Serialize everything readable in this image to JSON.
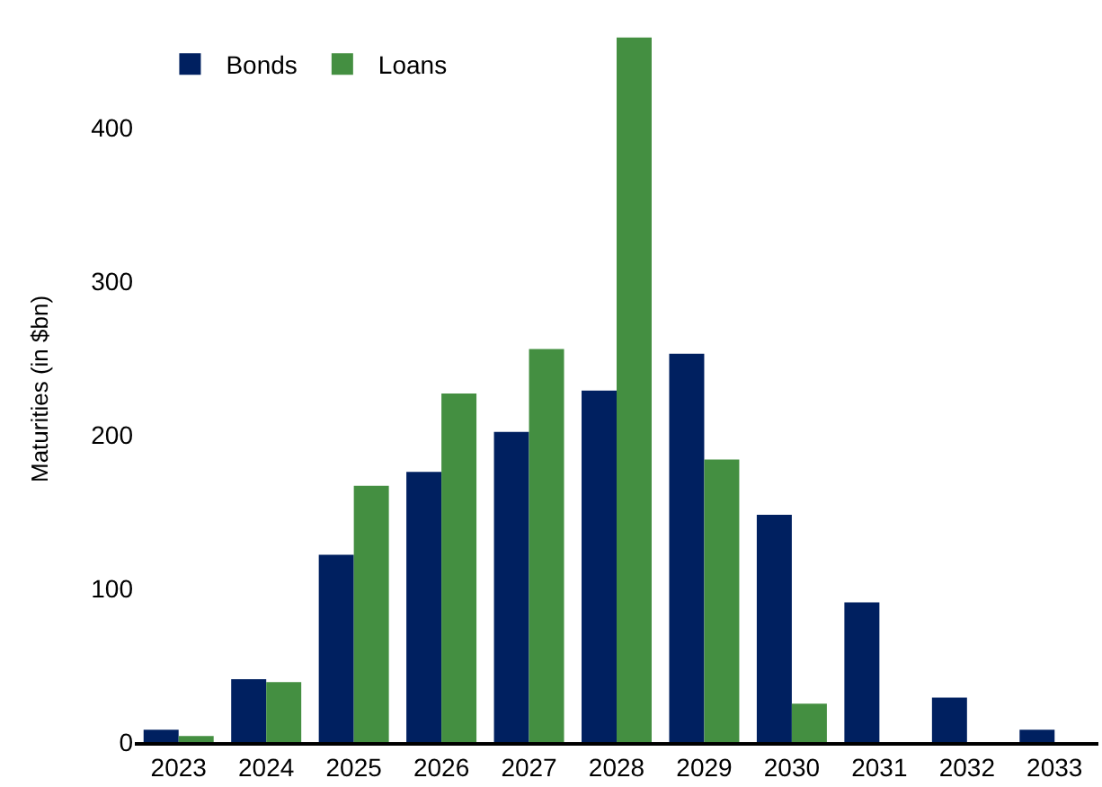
{
  "chart_data": {
    "type": "bar",
    "ylabel": "Maturities (in $bn)",
    "categories": [
      "2023",
      "2024",
      "2025",
      "2026",
      "2027",
      "2028",
      "2029",
      "2030",
      "2031",
      "2032",
      "2033"
    ],
    "series": [
      {
        "name": "Bonds",
        "color": "#002060",
        "values": [
          8,
          41,
          122,
          176,
          202,
          229,
          253,
          148,
          91,
          29,
          8
        ]
      },
      {
        "name": "Loans",
        "color": "#448f41",
        "values": [
          4,
          39,
          167,
          227,
          256,
          459,
          184,
          25,
          null,
          null,
          null
        ]
      }
    ],
    "ylim": [
      0,
      460
    ],
    "yticks": [
      0,
      100,
      200,
      300,
      400
    ],
    "grid": false,
    "legend": "top left"
  }
}
